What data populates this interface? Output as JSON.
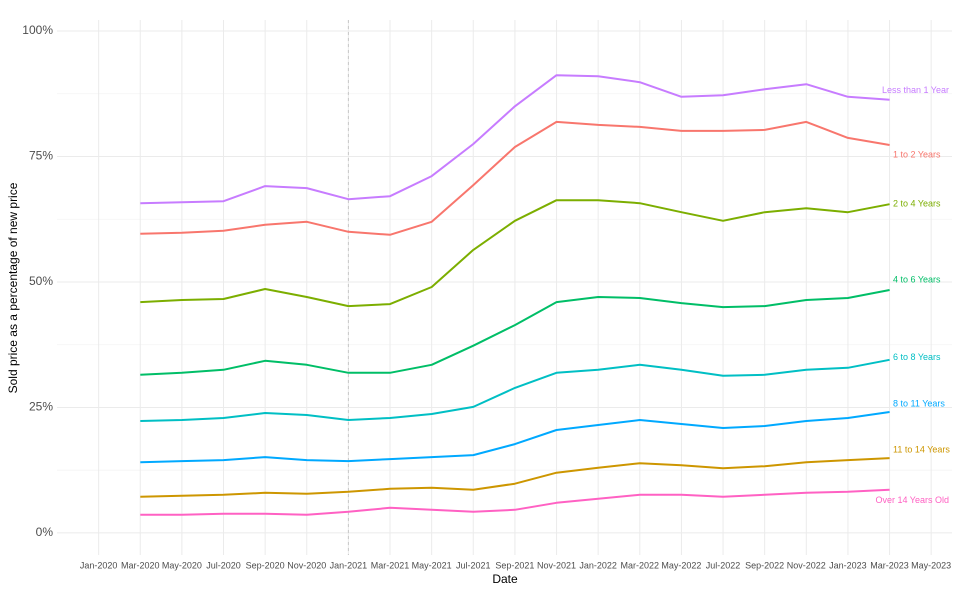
{
  "chart_data": {
    "type": "line",
    "xlabel": "Date",
    "ylabel": "Sold price as a percentage of new price",
    "x": [
      "Mar-2020",
      "May-2020",
      "Jul-2020",
      "Sep-2020",
      "Nov-2020",
      "Jan-2021",
      "Mar-2021",
      "May-2021",
      "Jul-2021",
      "Sep-2021",
      "Nov-2021",
      "Jan-2022",
      "Mar-2022",
      "May-2022",
      "Jul-2022",
      "Sep-2022",
      "Nov-2022",
      "Jan-2023",
      "Mar-2023"
    ],
    "xlim": [
      "Nov-2019",
      "Jun-2023"
    ],
    "xticks": [
      "Jan-2020",
      "Mar-2020",
      "May-2020",
      "Jul-2020",
      "Sep-2020",
      "Nov-2020",
      "Jan-2021",
      "Mar-2021",
      "May-2021",
      "Jul-2021",
      "Sep-2021",
      "Nov-2021",
      "Jan-2022",
      "Mar-2022",
      "May-2022",
      "Jul-2022",
      "Sep-2022",
      "Nov-2022",
      "Jan-2023",
      "Mar-2023",
      "May-2023"
    ],
    "ylim": [
      -4.4,
      102.2
    ],
    "yticks": [
      {
        "value": 0,
        "label": "0%"
      },
      {
        "value": 25,
        "label": "25%"
      },
      {
        "value": 50,
        "label": "50%"
      },
      {
        "value": 75,
        "label": "75%"
      },
      {
        "value": 100,
        "label": "100%"
      }
    ],
    "grid": true,
    "vline": "Jan-2021",
    "series": [
      {
        "name": "Less than 1 Year",
        "color": "#C77CFF",
        "values": [
          65.7,
          65.9,
          66.1,
          69.1,
          68.7,
          66.5,
          67.1,
          71.1,
          77.5,
          85,
          91.2,
          91,
          89.8,
          86.9,
          87.2,
          88.4,
          89.4,
          86.9,
          86.3
        ]
      },
      {
        "name": "1 to 2 Years",
        "color": "#F8766D",
        "values": [
          59.6,
          59.8,
          60.2,
          61.4,
          62,
          60,
          59.4,
          62,
          69.3,
          76.9,
          81.9,
          81.3,
          80.9,
          80.1,
          80.1,
          80.3,
          81.9,
          78.7,
          77.3
        ]
      },
      {
        "name": "2 to 4 Years",
        "color": "#7CAE00",
        "values": [
          46,
          46.4,
          46.6,
          48.6,
          47,
          45.2,
          45.6,
          49,
          56.4,
          62.2,
          66.3,
          66.3,
          65.7,
          63.9,
          62.2,
          63.9,
          64.7,
          63.9,
          65.5
        ]
      },
      {
        "name": "4 to 6 Years",
        "color": "#00BE67",
        "values": [
          31.5,
          31.9,
          32.5,
          34.3,
          33.5,
          31.9,
          31.9,
          33.5,
          37.3,
          41.4,
          46,
          47,
          46.8,
          45.8,
          45,
          45.2,
          46.4,
          46.8,
          48.4
        ]
      },
      {
        "name": "6 to 8 Years",
        "color": "#00BFC4",
        "values": [
          22.3,
          22.5,
          22.9,
          23.9,
          23.5,
          22.5,
          22.9,
          23.7,
          25.1,
          28.9,
          31.9,
          32.5,
          33.5,
          32.5,
          31.3,
          31.5,
          32.5,
          32.9,
          34.5
        ]
      },
      {
        "name": "8 to 11 Years",
        "color": "#00A9FF",
        "values": [
          14.1,
          14.3,
          14.5,
          15.1,
          14.5,
          14.3,
          14.7,
          15.1,
          15.5,
          17.7,
          20.5,
          21.5,
          22.5,
          21.7,
          20.9,
          21.3,
          22.3,
          22.9,
          24.1
        ]
      },
      {
        "name": "11 to 14 Years",
        "color": "#CD9600",
        "values": [
          7.2,
          7.4,
          7.6,
          8,
          7.8,
          8.2,
          8.8,
          9,
          8.6,
          9.8,
          12,
          13,
          13.9,
          13.5,
          12.9,
          13.3,
          14.1,
          14.5,
          14.9
        ]
      },
      {
        "name": "Over 14 Years Old",
        "color": "#FF61C3",
        "values": [
          3.6,
          3.6,
          3.8,
          3.8,
          3.6,
          4.2,
          5,
          4.6,
          4.2,
          4.6,
          6,
          6.8,
          7.6,
          7.6,
          7.2,
          7.6,
          8,
          8.2,
          8.6
        ]
      }
    ]
  }
}
